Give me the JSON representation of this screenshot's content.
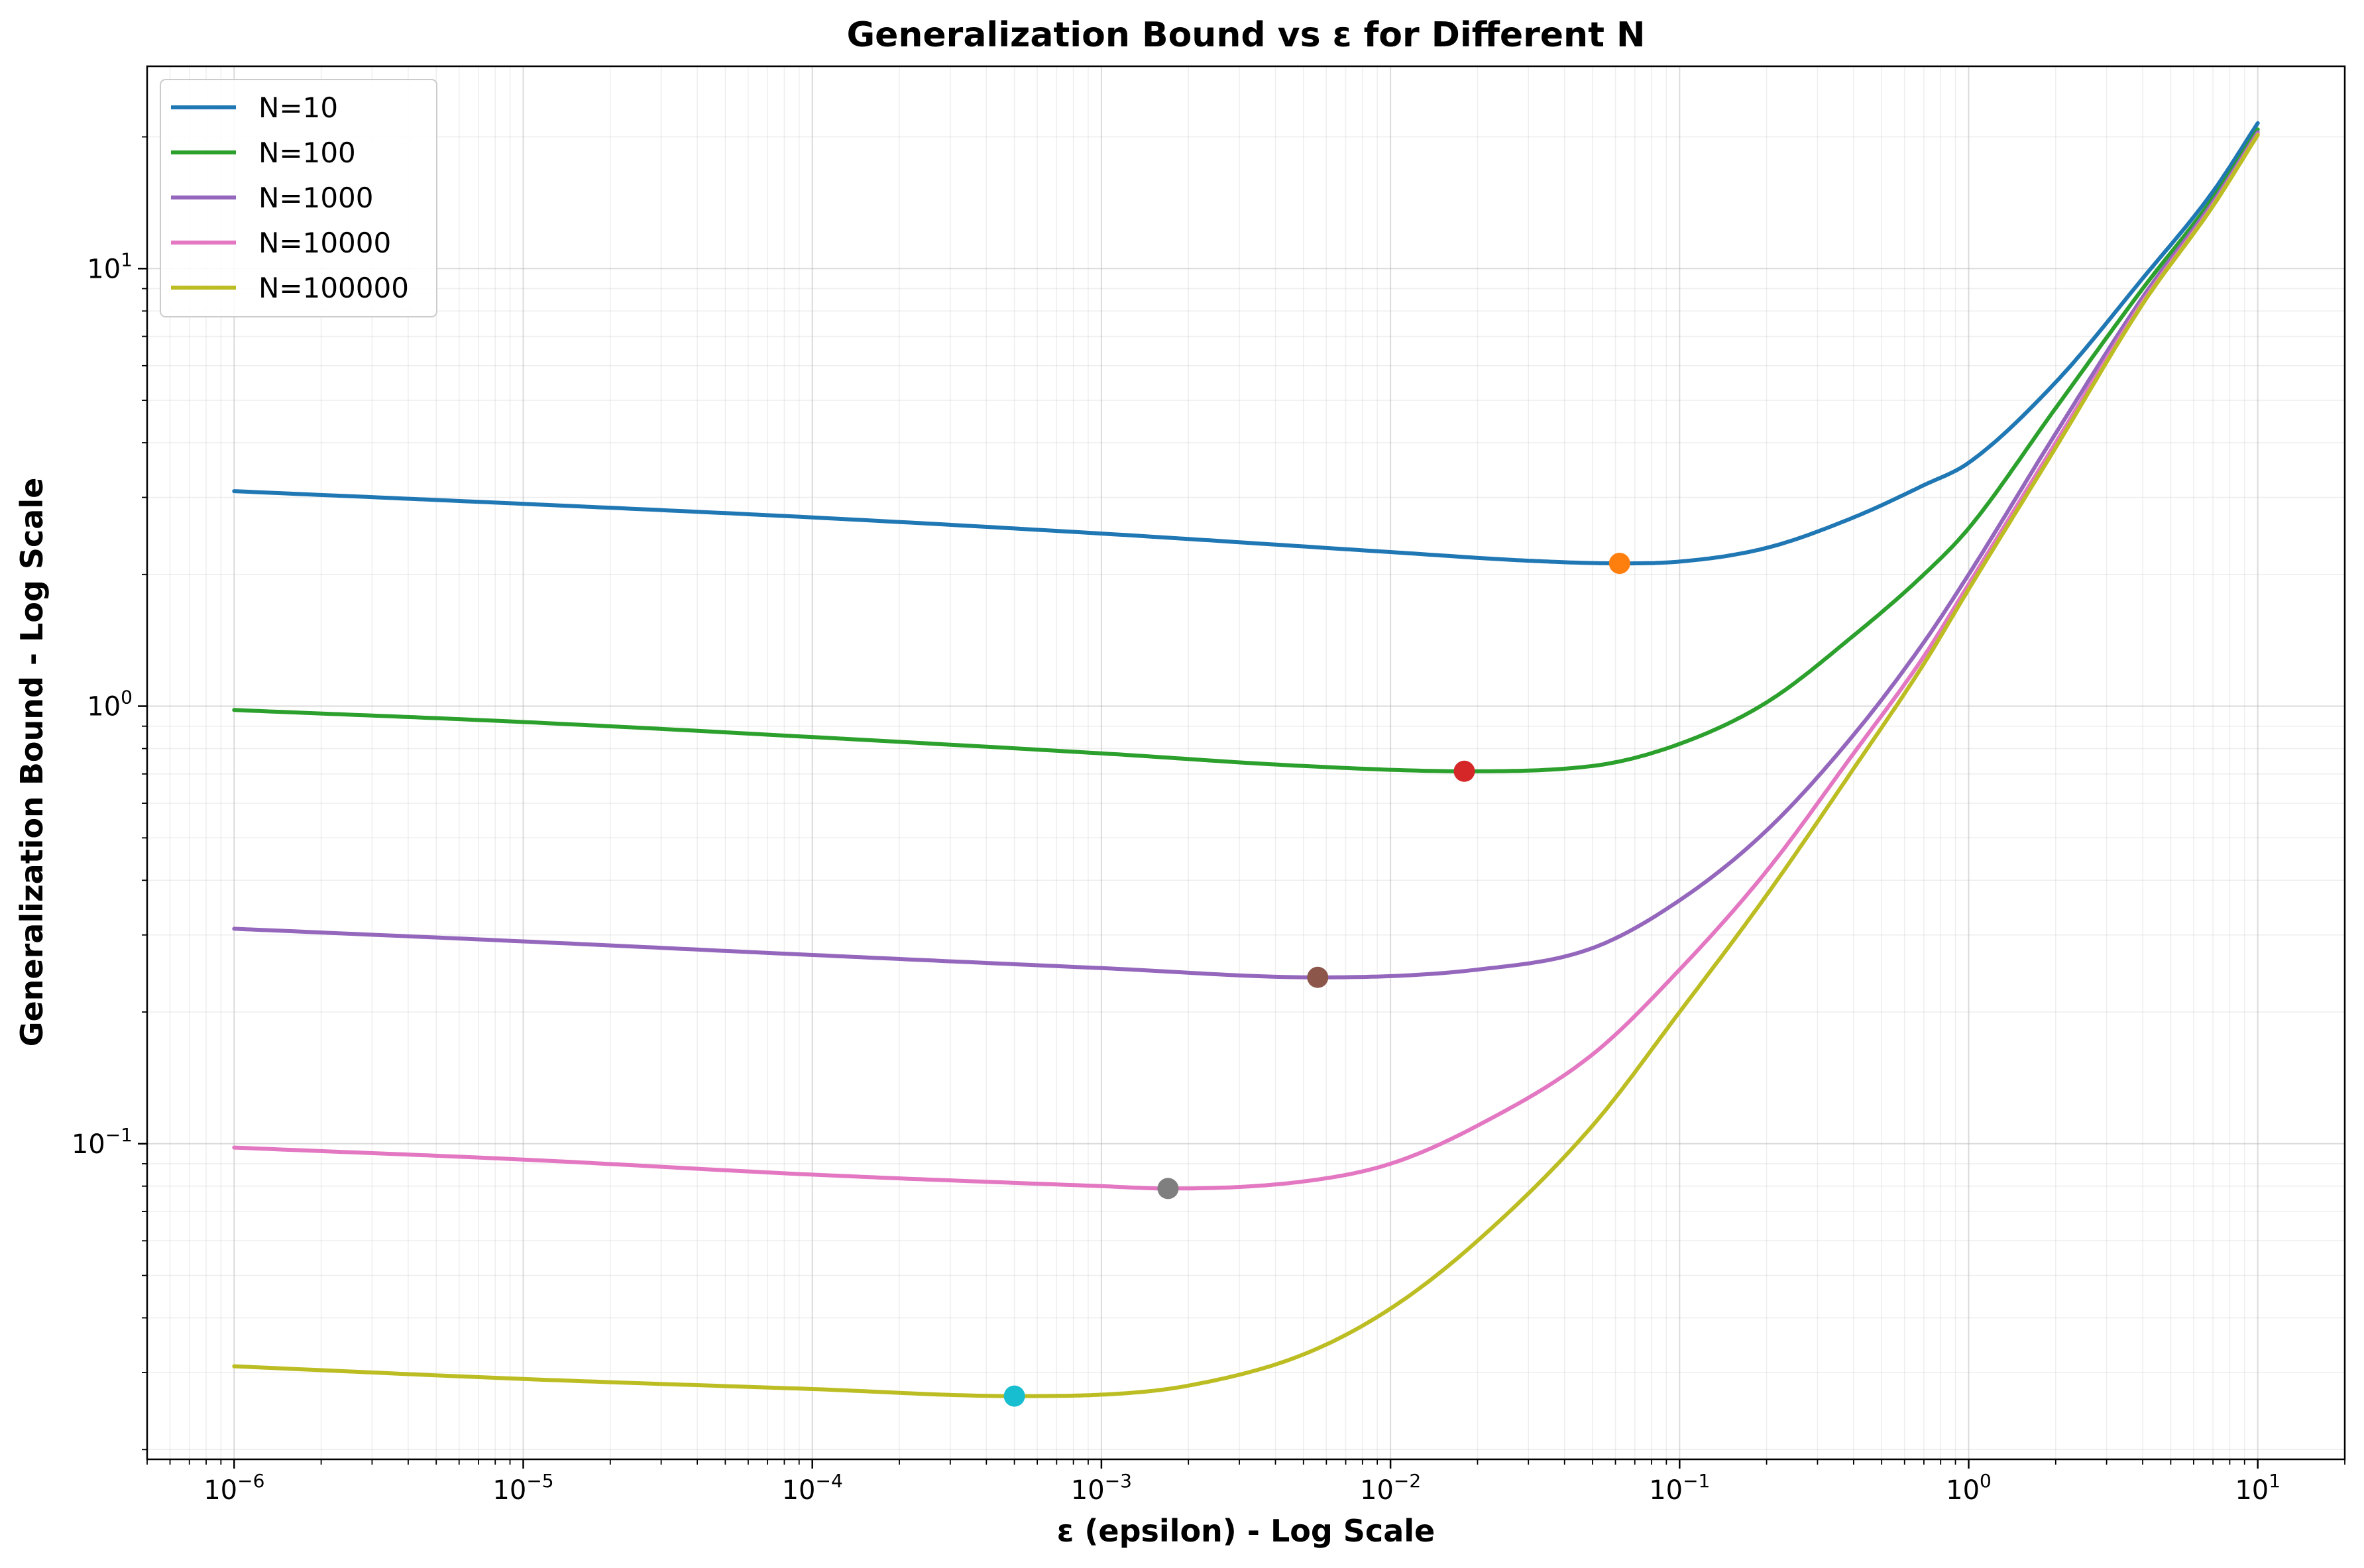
{
  "chart_data": {
    "type": "line",
    "title": "Generalization Bound vs ε for Different N",
    "xlabel": "ε (epsilon) - Log Scale",
    "ylabel": "Generalization Bound - Log Scale",
    "xscale": "log",
    "yscale": "log",
    "xlim": [
      5e-07,
      20
    ],
    "ylim": [
      0.019,
      29
    ],
    "grid": "both",
    "legend_position": "top-left",
    "x_ticks": [
      {
        "base": "10",
        "exp": "−6",
        "value": 1e-06
      },
      {
        "base": "10",
        "exp": "−5",
        "value": 1e-05
      },
      {
        "base": "10",
        "exp": "−4",
        "value": 0.0001
      },
      {
        "base": "10",
        "exp": "−3",
        "value": 0.001
      },
      {
        "base": "10",
        "exp": "−2",
        "value": 0.01
      },
      {
        "base": "10",
        "exp": "−1",
        "value": 0.1
      },
      {
        "base": "10",
        "exp": "0",
        "value": 1
      },
      {
        "base": "10",
        "exp": "1",
        "value": 10
      }
    ],
    "y_ticks": [
      {
        "base": "10",
        "exp": "−1",
        "value": 0.1
      },
      {
        "base": "10",
        "exp": "0",
        "value": 1
      },
      {
        "base": "10",
        "exp": "1",
        "value": 10
      }
    ],
    "series": [
      {
        "name": "N=10",
        "color": "#1f77b4",
        "marker_color": "#ff7f0e",
        "points": [
          [
            1e-06,
            3.1
          ],
          [
            1e-05,
            2.9
          ],
          [
            0.0001,
            2.7
          ],
          [
            0.001,
            2.48
          ],
          [
            0.01,
            2.25
          ],
          [
            0.03,
            2.15
          ],
          [
            0.062,
            2.12
          ],
          [
            0.1,
            2.14
          ],
          [
            0.2,
            2.3
          ],
          [
            0.4,
            2.7
          ],
          [
            0.7,
            3.2
          ],
          [
            1,
            3.6
          ],
          [
            2,
            5.5
          ],
          [
            4,
            9.5
          ],
          [
            7,
            15.0
          ],
          [
            10,
            21.5
          ]
        ],
        "minimum": {
          "x": 0.062,
          "y": 2.12
        }
      },
      {
        "name": "N=100",
        "color": "#2ca02c",
        "marker_color": "#d62728",
        "points": [
          [
            1e-06,
            0.98
          ],
          [
            1e-05,
            0.92
          ],
          [
            0.0001,
            0.85
          ],
          [
            0.001,
            0.78
          ],
          [
            0.005,
            0.73
          ],
          [
            0.018,
            0.71
          ],
          [
            0.05,
            0.73
          ],
          [
            0.1,
            0.82
          ],
          [
            0.2,
            1.02
          ],
          [
            0.4,
            1.45
          ],
          [
            0.7,
            2.0
          ],
          [
            1,
            2.55
          ],
          [
            2,
            4.8
          ],
          [
            4,
            9.0
          ],
          [
            7,
            14.5
          ],
          [
            10,
            20.8
          ]
        ],
        "minimum": {
          "x": 0.018,
          "y": 0.71
        }
      },
      {
        "name": "N=1000",
        "color": "#9467bd",
        "marker_color": "#8c564b",
        "points": [
          [
            1e-06,
            0.31
          ],
          [
            1e-05,
            0.29
          ],
          [
            0.0001,
            0.27
          ],
          [
            0.001,
            0.252
          ],
          [
            0.0056,
            0.24
          ],
          [
            0.02,
            0.25
          ],
          [
            0.05,
            0.28
          ],
          [
            0.1,
            0.36
          ],
          [
            0.2,
            0.52
          ],
          [
            0.4,
            0.86
          ],
          [
            0.7,
            1.4
          ],
          [
            1,
            2.0
          ],
          [
            2,
            4.2
          ],
          [
            4,
            8.6
          ],
          [
            7,
            14.2
          ],
          [
            10,
            20.5
          ]
        ],
        "minimum": {
          "x": 0.0056,
          "y": 0.24
        }
      },
      {
        "name": "N=10000",
        "color": "#e377c2",
        "marker_color": "#7f7f7f",
        "points": [
          [
            1e-06,
            0.098
          ],
          [
            1e-05,
            0.092
          ],
          [
            0.0001,
            0.085
          ],
          [
            0.001,
            0.08
          ],
          [
            0.0017,
            0.079
          ],
          [
            0.005,
            0.082
          ],
          [
            0.01,
            0.09
          ],
          [
            0.02,
            0.11
          ],
          [
            0.05,
            0.16
          ],
          [
            0.1,
            0.25
          ],
          [
            0.2,
            0.42
          ],
          [
            0.4,
            0.78
          ],
          [
            0.7,
            1.3
          ],
          [
            1,
            1.9
          ],
          [
            2,
            4.0
          ],
          [
            4,
            8.4
          ],
          [
            7,
            14.0
          ],
          [
            10,
            20.3
          ]
        ],
        "minimum": {
          "x": 0.0017,
          "y": 0.079
        }
      },
      {
        "name": "N=100000",
        "color": "#bcbd22",
        "marker_color": "#17becf",
        "points": [
          [
            1e-06,
            0.031
          ],
          [
            1e-05,
            0.029
          ],
          [
            0.0001,
            0.0275
          ],
          [
            0.0005,
            0.0265
          ],
          [
            0.001,
            0.0267
          ],
          [
            0.002,
            0.028
          ],
          [
            0.005,
            0.033
          ],
          [
            0.01,
            0.042
          ],
          [
            0.02,
            0.06
          ],
          [
            0.05,
            0.11
          ],
          [
            0.1,
            0.2
          ],
          [
            0.2,
            0.37
          ],
          [
            0.4,
            0.72
          ],
          [
            0.7,
            1.25
          ],
          [
            1,
            1.85
          ],
          [
            2,
            3.9
          ],
          [
            4,
            8.3
          ],
          [
            7,
            13.9
          ],
          [
            10,
            20.2
          ]
        ],
        "minimum": {
          "x": 0.0005,
          "y": 0.0265
        }
      }
    ]
  }
}
